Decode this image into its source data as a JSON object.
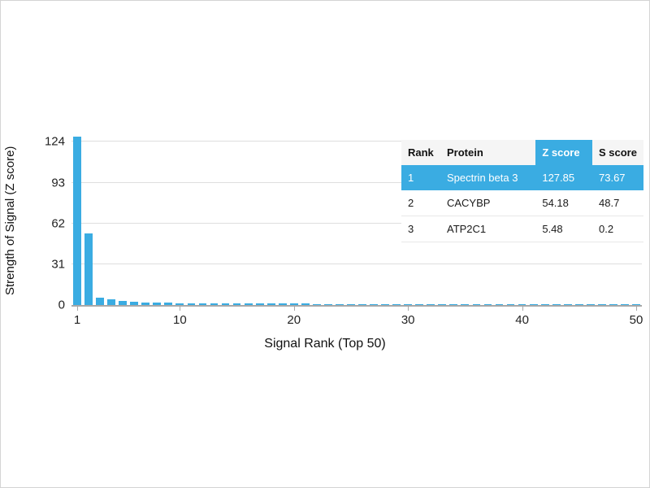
{
  "chart_data": {
    "type": "bar",
    "title": "",
    "xlabel": "Signal Rank (Top 50)",
    "ylabel": "Strength of Signal (Z score)",
    "x_ticks": [
      1,
      10,
      20,
      30,
      40,
      50
    ],
    "y_ticks": [
      0,
      31,
      62,
      93,
      124
    ],
    "ylim": [
      0,
      128
    ],
    "xlim": [
      1,
      50
    ],
    "grid": true,
    "legend": "none",
    "bar_color": "#3AACE2",
    "values": [
      127.85,
      54.18,
      5.48,
      4.6,
      3.1,
      2.4,
      2.0,
      1.8,
      1.6,
      1.5,
      1.4,
      1.35,
      1.3,
      1.25,
      1.2,
      1.15,
      1.1,
      1.05,
      1.0,
      0.98,
      0.95,
      0.92,
      0.9,
      0.88,
      0.85,
      0.82,
      0.8,
      0.78,
      0.75,
      0.72,
      0.7,
      0.68,
      0.66,
      0.64,
      0.62,
      0.6,
      0.58,
      0.56,
      0.54,
      0.52,
      0.5,
      0.49,
      0.48,
      0.47,
      0.46,
      0.45,
      0.44,
      0.43,
      0.42,
      0.4
    ]
  },
  "table": {
    "columns": [
      "Rank",
      "Protein",
      "Z score",
      "S score"
    ],
    "column_keys": [
      "rank",
      "protein",
      "z-score",
      "s-score"
    ],
    "highlight_column_index": 2,
    "highlight_color": "#3AACE2",
    "rows": [
      {
        "cells": [
          "1",
          "Spectrin beta 3",
          "127.85",
          "73.67"
        ],
        "highlight": true
      },
      {
        "cells": [
          "2",
          "CACYBP",
          "54.18",
          "48.7"
        ],
        "highlight": false
      },
      {
        "cells": [
          "3",
          "ATP2C1",
          "5.48",
          "0.2"
        ],
        "highlight": false
      }
    ]
  }
}
